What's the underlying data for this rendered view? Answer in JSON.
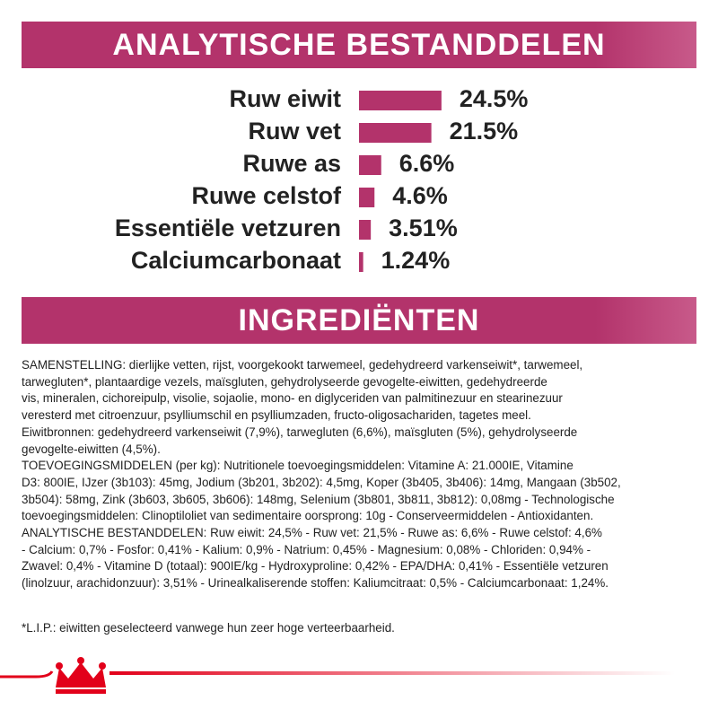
{
  "header": {
    "title": "ANALYTISCHE BESTANDDELEN"
  },
  "chart_data": {
    "type": "bar",
    "orientation": "horizontal",
    "categories": [
      "Ruw eiwit",
      "Ruw vet",
      "Ruwe as",
      "Ruwe celstof",
      "Essentiële vetzuren",
      "Calciumcarbonaat"
    ],
    "values": [
      24.5,
      21.5,
      6.6,
      4.6,
      3.51,
      1.24
    ],
    "value_labels": [
      "24.5%",
      "21.5%",
      "6.6%",
      "4.6%",
      "3.51%",
      "1.24%"
    ],
    "color": "#b3336b"
  },
  "ingredients": {
    "title": "INGREDIËNTEN",
    "lines": [
      "SAMENSTELLING: dierlijke vetten, rijst, voorgekookt tarwemeel, gedehydreerd varkenseiwit*, tarwemeel,",
      "tarwegluten*, plantaardige vezels, maïsgluten, gehydrolyseerde gevogelte-eiwitten, gedehydreerde",
      "vis, mineralen, cichoreipulp, visolie, sojaolie, mono- en diglyceriden van palmitinezuur en stearinezuur",
      "veresterd met citroenzuur, psylliumschil en psylliumzaden, fructo-oligosachariden, tagetes meel.",
      "Eiwitbronnen: gedehydreerd varkenseiwit (7,9%), tarwegluten (6,6%), maïsgluten (5%), gehydrolyseerde",
      "gevogelte-eiwitten (4,5%).",
      "TOEVOEGINGSMIDDELEN (per kg): Nutritionele toevoegingsmiddelen: Vitamine A: 21.000IE, Vitamine",
      "D3: 800IE, IJzer (3b103): 45mg, Jodium (3b201, 3b202): 4,5mg, Koper (3b405, 3b406): 14mg, Mangaan (3b502,",
      "3b504): 58mg, Zink (3b603, 3b605, 3b606): 148mg, Selenium (3b801, 3b811, 3b812): 0,08mg - Technologische",
      "toevoegingsmiddelen: Clinoptiloliet van sedimentaire oorsprong: 10g - Conserveermiddelen - Antioxidanten.",
      "ANALYTISCHE BESTANDDELEN: Ruw eiwit: 24,5% - Ruw vet: 21,5% - Ruwe as: 6,6% - Ruwe celstof: 4,6%",
      "- Calcium: 0,7% - Fosfor: 0,41% - Kalium: 0,9% - Natrium: 0,45% - Magnesium: 0,08% - Chloriden: 0,94% -",
      "Zwavel: 0,4% - Vitamine D (totaal): 900IE/kg - Hydroxyproline: 0,42% - EPA/DHA: 0,41% - Essentiële vetzuren",
      "(linolzuur, arachidonzuur): 3,51% - Urinealkaliserende stoffen: Kaliumcitraat: 0,5% - Calciumcarbonaat: 1,24%."
    ]
  },
  "footnote": "*L.I.P.: eiwitten geselecteerd vanwege hun zeer hoge verteerbaarheid."
}
